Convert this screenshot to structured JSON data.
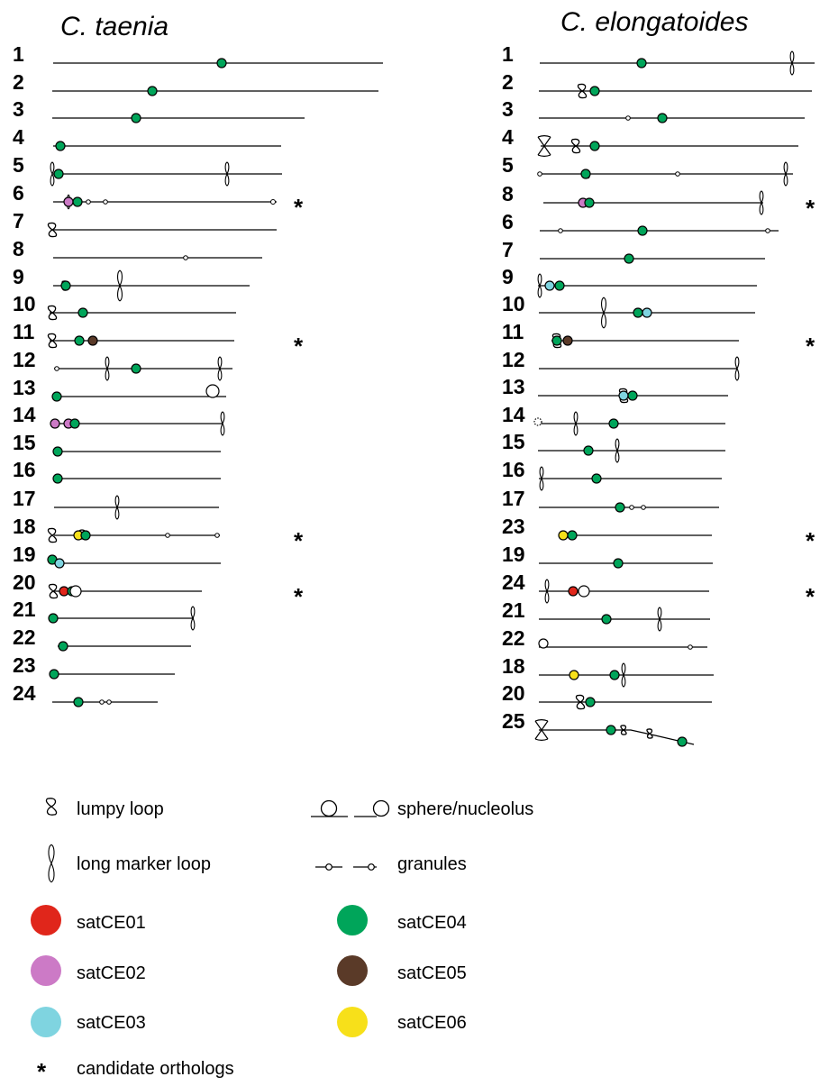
{
  "colors": {
    "satCE01": "#e0261b",
    "satCE02": "#cc7ac6",
    "satCE03": "#7fd4e0",
    "satCE04": "#00a55a",
    "satCE05": "#5a3a28",
    "satCE06": "#f7e01a"
  },
  "panels": [
    {
      "title": "C. taenia",
      "chromosomes": [
        {
          "label": "1",
          "candidate": false,
          "features": [
            {
              "t": "sat",
              "c": "satCE04"
            }
          ]
        },
        {
          "label": "2",
          "candidate": false,
          "features": [
            {
              "t": "sat",
              "c": "satCE04"
            }
          ]
        },
        {
          "label": "3",
          "candidate": false,
          "features": [
            {
              "t": "sat",
              "c": "satCE04"
            }
          ]
        },
        {
          "label": "4",
          "candidate": false,
          "features": [
            {
              "t": "sat",
              "c": "satCE04"
            }
          ]
        },
        {
          "label": "5",
          "candidate": false,
          "features": [
            {
              "t": "long-loop"
            },
            {
              "t": "sat",
              "c": "satCE04"
            },
            {
              "t": "long-loop"
            }
          ]
        },
        {
          "label": "6",
          "candidate": true,
          "features": [
            {
              "t": "long-loop"
            },
            {
              "t": "sat",
              "c": "satCE02"
            },
            {
              "t": "sat",
              "c": "satCE04"
            },
            {
              "t": "granule"
            },
            {
              "t": "granule"
            },
            {
              "t": "granule"
            }
          ]
        },
        {
          "label": "7",
          "candidate": false,
          "features": [
            {
              "t": "lumpy-loop"
            }
          ]
        },
        {
          "label": "8",
          "candidate": false,
          "features": [
            {
              "t": "granule"
            }
          ]
        },
        {
          "label": "9",
          "candidate": false,
          "features": [
            {
              "t": "lumpy-loop"
            },
            {
              "t": "sat",
              "c": "satCE04"
            },
            {
              "t": "long-loop"
            }
          ]
        },
        {
          "label": "10",
          "candidate": false,
          "features": [
            {
              "t": "lumpy-loop"
            },
            {
              "t": "sat",
              "c": "satCE04"
            }
          ]
        },
        {
          "label": "11",
          "candidate": true,
          "features": [
            {
              "t": "lumpy-loop"
            },
            {
              "t": "sat",
              "c": "satCE04"
            },
            {
              "t": "sat",
              "c": "satCE05"
            }
          ]
        },
        {
          "label": "12",
          "candidate": false,
          "features": [
            {
              "t": "granule"
            },
            {
              "t": "long-loop"
            },
            {
              "t": "sat",
              "c": "satCE04"
            },
            {
              "t": "long-loop"
            }
          ]
        },
        {
          "label": "13",
          "candidate": false,
          "features": [
            {
              "t": "sat",
              "c": "satCE04"
            },
            {
              "t": "sphere"
            }
          ]
        },
        {
          "label": "14",
          "candidate": false,
          "features": [
            {
              "t": "sat",
              "c": "satCE02"
            },
            {
              "t": "sat",
              "c": "satCE02"
            },
            {
              "t": "sat",
              "c": "satCE04"
            },
            {
              "t": "long-loop"
            }
          ]
        },
        {
          "label": "15",
          "candidate": false,
          "features": [
            {
              "t": "sat",
              "c": "satCE04"
            }
          ]
        },
        {
          "label": "16",
          "candidate": false,
          "features": [
            {
              "t": "sat",
              "c": "satCE04"
            }
          ]
        },
        {
          "label": "17",
          "candidate": false,
          "features": [
            {
              "t": "long-loop"
            }
          ]
        },
        {
          "label": "18",
          "candidate": true,
          "features": [
            {
              "t": "lumpy-loop"
            },
            {
              "t": "sphere"
            },
            {
              "t": "sat",
              "c": "satCE06"
            },
            {
              "t": "sat",
              "c": "satCE04"
            },
            {
              "t": "granule"
            },
            {
              "t": "granule"
            }
          ]
        },
        {
          "label": "19",
          "candidate": false,
          "features": [
            {
              "t": "sat",
              "c": "satCE04"
            },
            {
              "t": "sat",
              "c": "satCE03"
            }
          ]
        },
        {
          "label": "20",
          "candidate": true,
          "features": [
            {
              "t": "lumpy-loop"
            },
            {
              "t": "sat",
              "c": "satCE01"
            },
            {
              "t": "sat",
              "c": "satCE04"
            },
            {
              "t": "sphere"
            }
          ]
        },
        {
          "label": "21",
          "candidate": false,
          "features": [
            {
              "t": "sat",
              "c": "satCE04"
            },
            {
              "t": "long-loop"
            }
          ]
        },
        {
          "label": "22",
          "candidate": false,
          "features": [
            {
              "t": "sat",
              "c": "satCE04"
            }
          ]
        },
        {
          "label": "23",
          "candidate": false,
          "features": [
            {
              "t": "sat",
              "c": "satCE04"
            }
          ]
        },
        {
          "label": "24",
          "candidate": false,
          "features": [
            {
              "t": "sat",
              "c": "satCE04"
            },
            {
              "t": "granule"
            },
            {
              "t": "granule"
            }
          ]
        }
      ]
    },
    {
      "title": "C. elongatoides",
      "chromosomes": [
        {
          "label": "1",
          "candidate": false,
          "features": [
            {
              "t": "sat",
              "c": "satCE04"
            },
            {
              "t": "long-loop"
            }
          ]
        },
        {
          "label": "2",
          "candidate": false,
          "features": [
            {
              "t": "lumpy-loop"
            },
            {
              "t": "sat",
              "c": "satCE04"
            }
          ]
        },
        {
          "label": "3",
          "candidate": false,
          "features": [
            {
              "t": "granule"
            },
            {
              "t": "sat",
              "c": "satCE04"
            }
          ]
        },
        {
          "label": "4",
          "candidate": false,
          "features": [
            {
              "t": "bow"
            },
            {
              "t": "lumpy-loop"
            },
            {
              "t": "sat",
              "c": "satCE04"
            }
          ]
        },
        {
          "label": "5",
          "candidate": false,
          "features": [
            {
              "t": "granule"
            },
            {
              "t": "lumpy-loop"
            },
            {
              "t": "sat",
              "c": "satCE04"
            },
            {
              "t": "granule"
            },
            {
              "t": "long-loop"
            }
          ]
        },
        {
          "label": "8",
          "candidate": true,
          "features": [
            {
              "t": "sat",
              "c": "satCE02"
            },
            {
              "t": "sat",
              "c": "satCE04"
            },
            {
              "t": "long-loop"
            }
          ]
        },
        {
          "label": "6",
          "candidate": false,
          "features": [
            {
              "t": "granule"
            },
            {
              "t": "sat",
              "c": "satCE04"
            },
            {
              "t": "granule"
            }
          ]
        },
        {
          "label": "7",
          "candidate": false,
          "features": [
            {
              "t": "sat",
              "c": "satCE04"
            }
          ]
        },
        {
          "label": "9",
          "candidate": false,
          "features": [
            {
              "t": "long-loop"
            },
            {
              "t": "sat",
              "c": "satCE03"
            },
            {
              "t": "sat",
              "c": "satCE04"
            }
          ]
        },
        {
          "label": "10",
          "candidate": false,
          "features": [
            {
              "t": "long-loop"
            },
            {
              "t": "sat",
              "c": "satCE04"
            },
            {
              "t": "sat",
              "c": "satCE03"
            }
          ]
        },
        {
          "label": "11",
          "candidate": true,
          "features": [
            {
              "t": "lumpy-loop"
            },
            {
              "t": "sat",
              "c": "satCE04"
            },
            {
              "t": "sat",
              "c": "satCE05"
            }
          ]
        },
        {
          "label": "12",
          "candidate": false,
          "features": [
            {
              "t": "long-loop"
            }
          ]
        },
        {
          "label": "13",
          "candidate": false,
          "features": [
            {
              "t": "lumpy-loop"
            },
            {
              "t": "sat",
              "c": "satCE03"
            },
            {
              "t": "sat",
              "c": "satCE04"
            }
          ]
        },
        {
          "label": "14",
          "candidate": false,
          "features": [
            {
              "t": "sphere-dotted"
            },
            {
              "t": "long-loop"
            },
            {
              "t": "sat",
              "c": "satCE04"
            }
          ]
        },
        {
          "label": "15",
          "candidate": false,
          "features": [
            {
              "t": "sat",
              "c": "satCE04"
            },
            {
              "t": "long-loop"
            }
          ]
        },
        {
          "label": "16",
          "candidate": false,
          "features": [
            {
              "t": "long-loop"
            },
            {
              "t": "sat",
              "c": "satCE04"
            }
          ]
        },
        {
          "label": "17",
          "candidate": false,
          "features": [
            {
              "t": "sat",
              "c": "satCE04"
            },
            {
              "t": "granule"
            },
            {
              "t": "granule"
            }
          ]
        },
        {
          "label": "23",
          "candidate": true,
          "features": [
            {
              "t": "sat",
              "c": "satCE06"
            },
            {
              "t": "sat",
              "c": "satCE04"
            }
          ]
        },
        {
          "label": "19",
          "candidate": false,
          "features": [
            {
              "t": "sat",
              "c": "satCE04"
            }
          ]
        },
        {
          "label": "24",
          "candidate": true,
          "features": [
            {
              "t": "long-loop"
            },
            {
              "t": "sat",
              "c": "satCE01"
            },
            {
              "t": "sat",
              "c": "satCE04"
            },
            {
              "t": "sphere"
            }
          ]
        },
        {
          "label": "21",
          "candidate": false,
          "features": [
            {
              "t": "sat",
              "c": "satCE04"
            },
            {
              "t": "long-loop"
            }
          ]
        },
        {
          "label": "22",
          "candidate": false,
          "features": [
            {
              "t": "sphere"
            },
            {
              "t": "granule"
            }
          ]
        },
        {
          "label": "18",
          "candidate": false,
          "features": [
            {
              "t": "sat",
              "c": "satCE06"
            },
            {
              "t": "sat",
              "c": "satCE04"
            },
            {
              "t": "long-loop"
            }
          ]
        },
        {
          "label": "20",
          "candidate": false,
          "features": [
            {
              "t": "lumpy-loop"
            },
            {
              "t": "sat",
              "c": "satCE04"
            }
          ]
        },
        {
          "label": "25",
          "candidate": false,
          "features": [
            {
              "t": "bow"
            },
            {
              "t": "sat",
              "c": "satCE04"
            },
            {
              "t": "lumpy-loop"
            },
            {
              "t": "lumpy-loop"
            },
            {
              "t": "sat",
              "c": "satCE04"
            }
          ]
        }
      ]
    }
  ],
  "candidate_marker": "*",
  "legend": [
    {
      "type": "lumpy-loop",
      "label": "lumpy loop"
    },
    {
      "type": "sphere",
      "label": "sphere/nucleolus"
    },
    {
      "type": "long-loop",
      "label": "long marker loop"
    },
    {
      "type": "granule",
      "label": "granules"
    },
    {
      "type": "sat",
      "color": "satCE01",
      "label": "satCE01"
    },
    {
      "type": "sat",
      "color": "satCE04",
      "label": "satCE04"
    },
    {
      "type": "sat",
      "color": "satCE02",
      "label": "satCE02"
    },
    {
      "type": "sat",
      "color": "satCE05",
      "label": "satCE05"
    },
    {
      "type": "sat",
      "color": "satCE03",
      "label": "satCE03"
    },
    {
      "type": "sat",
      "color": "satCE06",
      "label": "satCE06"
    },
    {
      "type": "star",
      "label": "candidate orthologs"
    }
  ]
}
